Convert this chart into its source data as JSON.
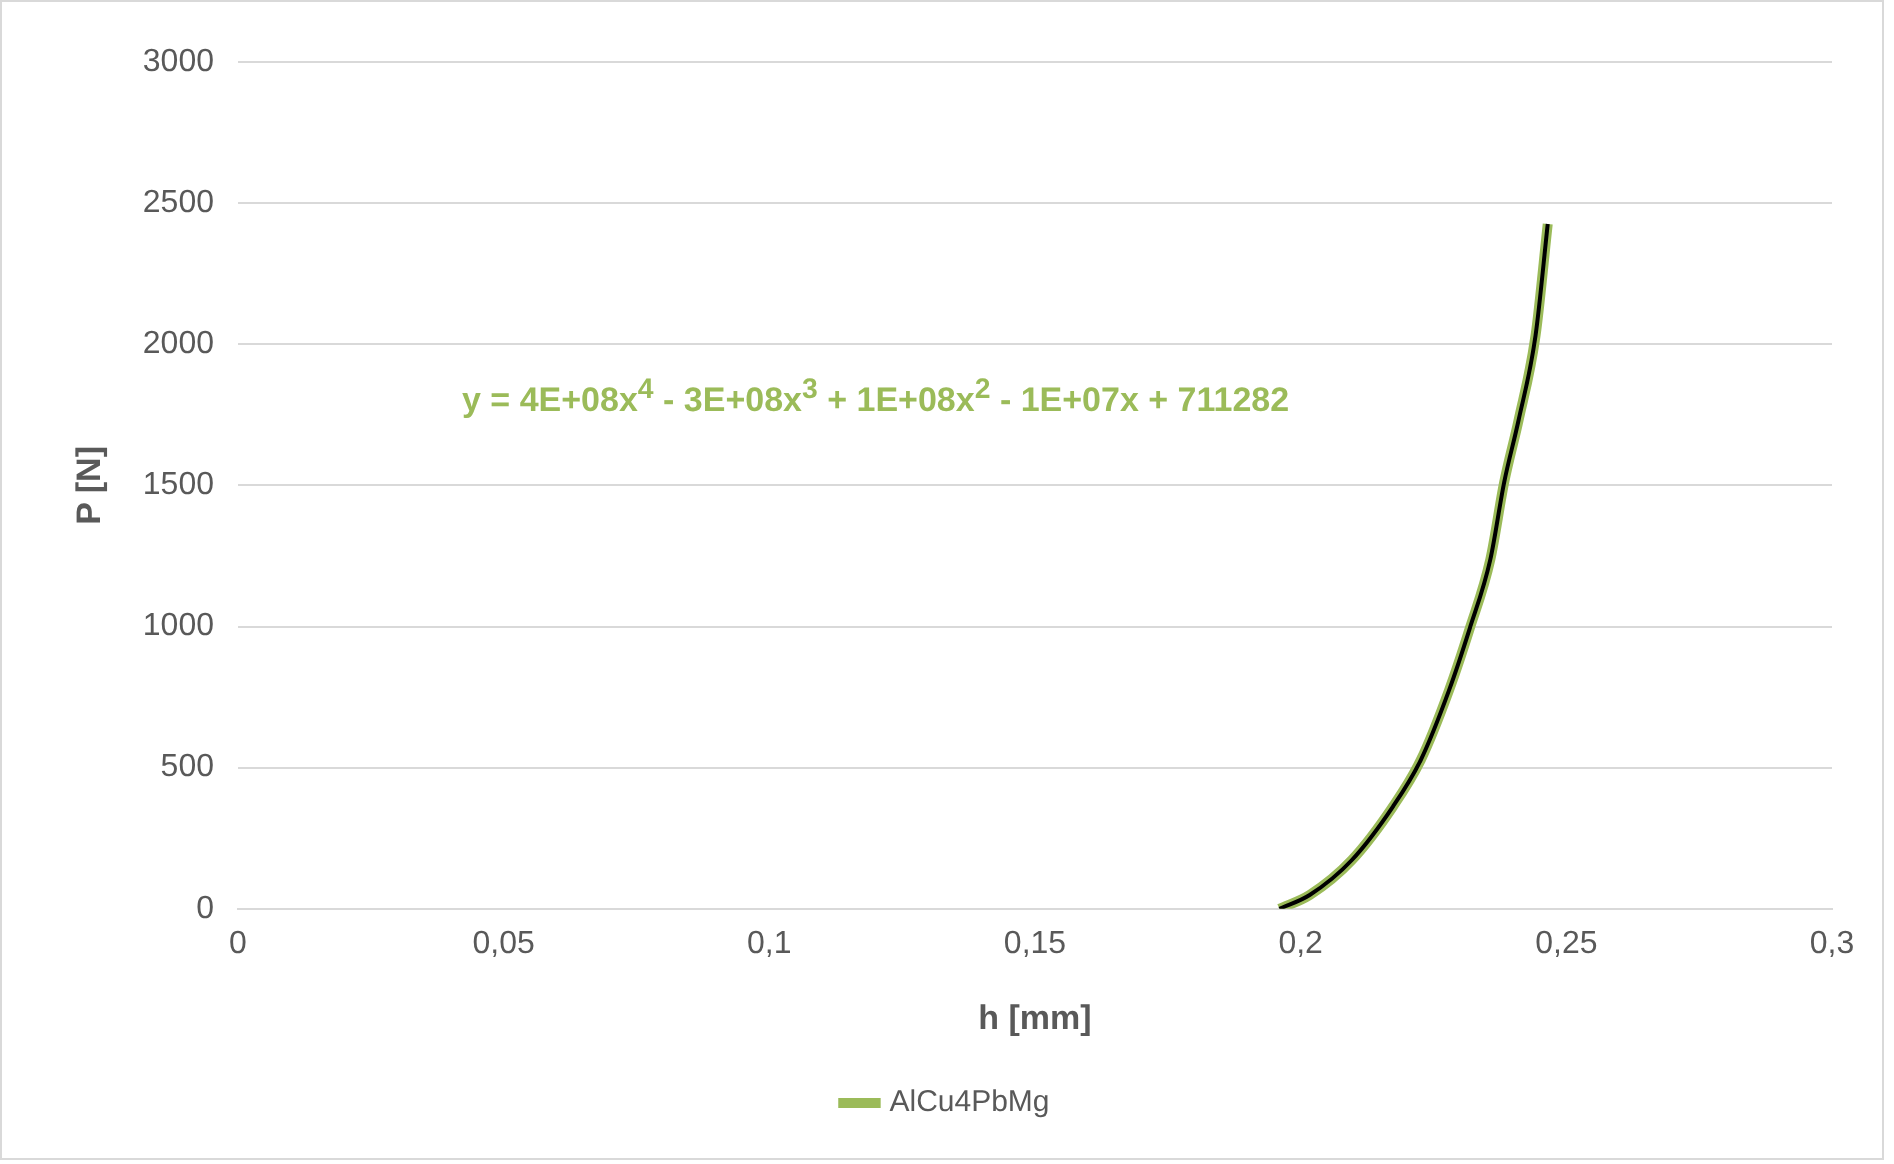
{
  "chart_data": {
    "type": "line",
    "xlabel": "h [mm]",
    "ylabel": "P [N]",
    "xlim": [
      0,
      0.3
    ],
    "xticks": [
      0,
      {
        "value": 0.05,
        "label": "0,05"
      },
      {
        "value": 0.1,
        "label": "0,1"
      },
      {
        "value": 0.15,
        "label": "0,15"
      },
      {
        "value": 0.2,
        "label": "0,2"
      },
      {
        "value": 0.25,
        "label": "0,25"
      },
      {
        "value": 0.3,
        "label": "0,3"
      }
    ],
    "ylim": [
      0,
      3000
    ],
    "yticks": [
      0,
      500,
      1000,
      1500,
      2000,
      2500,
      3000
    ],
    "grid": "y",
    "legend": "bottom",
    "marker": "none",
    "series": [
      {
        "name": "AlCu4PbMg",
        "color": "#9bbb59",
        "x": [
          0.196,
          0.2017,
          0.2096,
          0.2174,
          0.2226,
          0.2279,
          0.2318,
          0.2357,
          0.2383,
          0.241,
          0.2442,
          0.2465
        ],
        "values": [
          0,
          49,
          172,
          363,
          527,
          773,
          992,
          1238,
          1511,
          1730,
          2030,
          2426
        ]
      },
      {
        "type": "line",
        "color": "#000000",
        "x": [
          0.196,
          0.2017,
          0.2096,
          0.2174,
          0.2226,
          0.2279,
          0.2318,
          0.2357,
          0.2383,
          0.241,
          0.2442,
          0.2465
        ],
        "values": [
          0,
          49,
          172,
          363,
          527,
          773,
          992,
          1238,
          1511,
          1730,
          2030,
          2426
        ]
      }
    ],
    "annotations": [
      "y = 4E+08x$^{4}$ - 3E+08x$^{3}$ + 1E+08x$^{2}$ - 1E+07x + 711282"
    ]
  }
}
